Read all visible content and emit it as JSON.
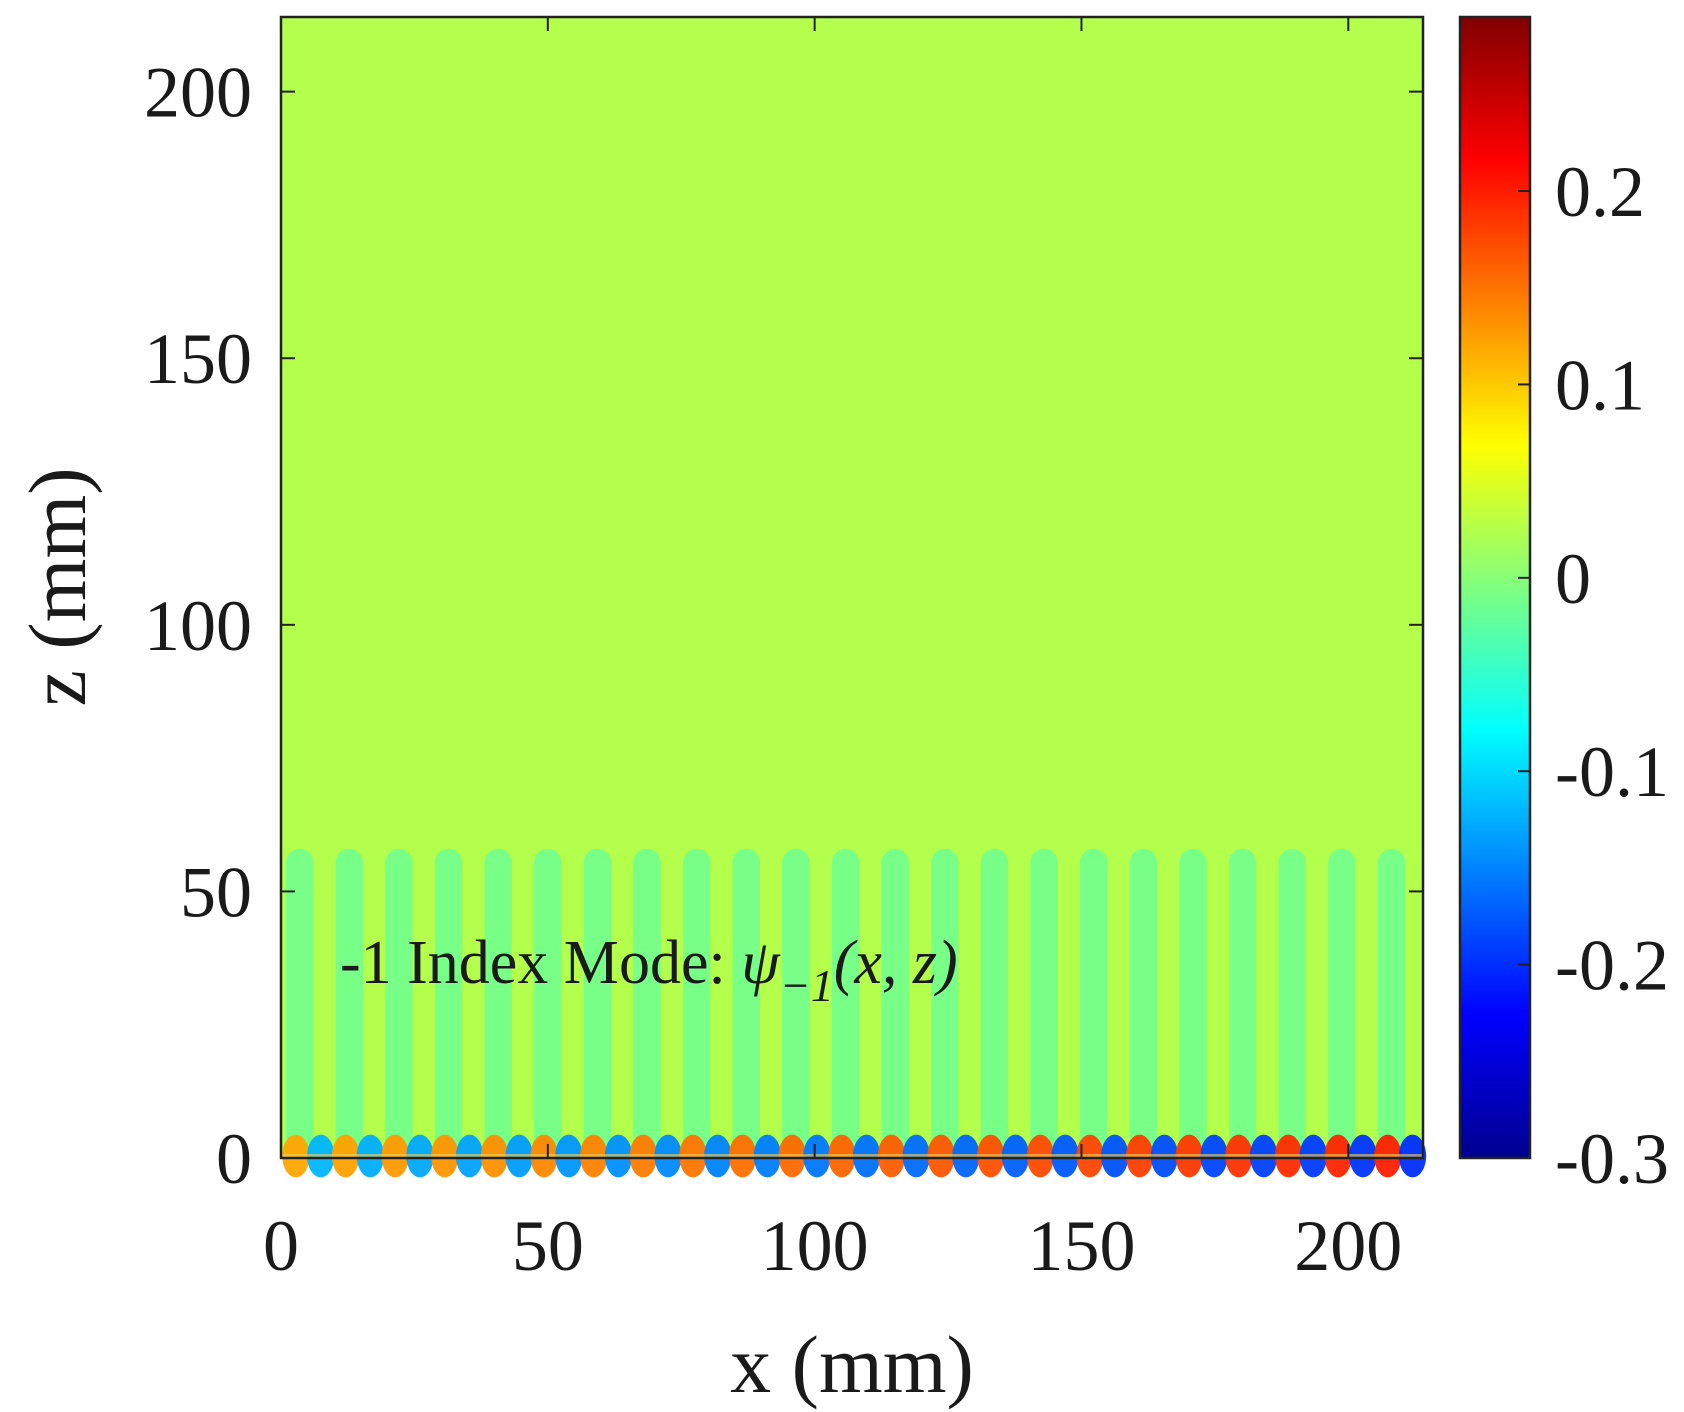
{
  "chart_data": {
    "type": "heatmap",
    "title": "",
    "xlabel": "x (mm)",
    "ylabel": "z (mm)",
    "xlim": [
      0,
      214
    ],
    "ylim": [
      0,
      214
    ],
    "x_ticks": [
      "0",
      "50",
      "100",
      "150",
      "200"
    ],
    "x_tick_values": [
      0,
      50,
      100,
      150,
      200
    ],
    "y_ticks": [
      "0",
      "50",
      "100",
      "150",
      "200"
    ],
    "y_tick_values": [
      0,
      50,
      100,
      150,
      200
    ],
    "annotation": {
      "text": "-1 Index Mode: ",
      "math_symbol": "ψ",
      "math_subscript": "−1",
      "math_args": "(x, z)",
      "x": 10,
      "z": 36
    },
    "colormap": "jet",
    "background_value": 0.025,
    "grating_region": {
      "z_top": 58,
      "x_start": 3.5,
      "period": 9.3,
      "count": 23,
      "stripe_value": -0.01
    },
    "surface_oscillation": {
      "z_max": 4,
      "period": 9.3,
      "amplitude_start": 0.12,
      "amplitude_end": 0.2
    },
    "colorbar": {
      "min": -0.3,
      "max": 0.29,
      "ticks": [
        "0.2",
        "0.1",
        "0",
        "-0.1",
        "-0.2",
        "-0.3"
      ],
      "tick_values": [
        0.2,
        0.1,
        0,
        -0.1,
        -0.2,
        -0.3
      ]
    }
  }
}
